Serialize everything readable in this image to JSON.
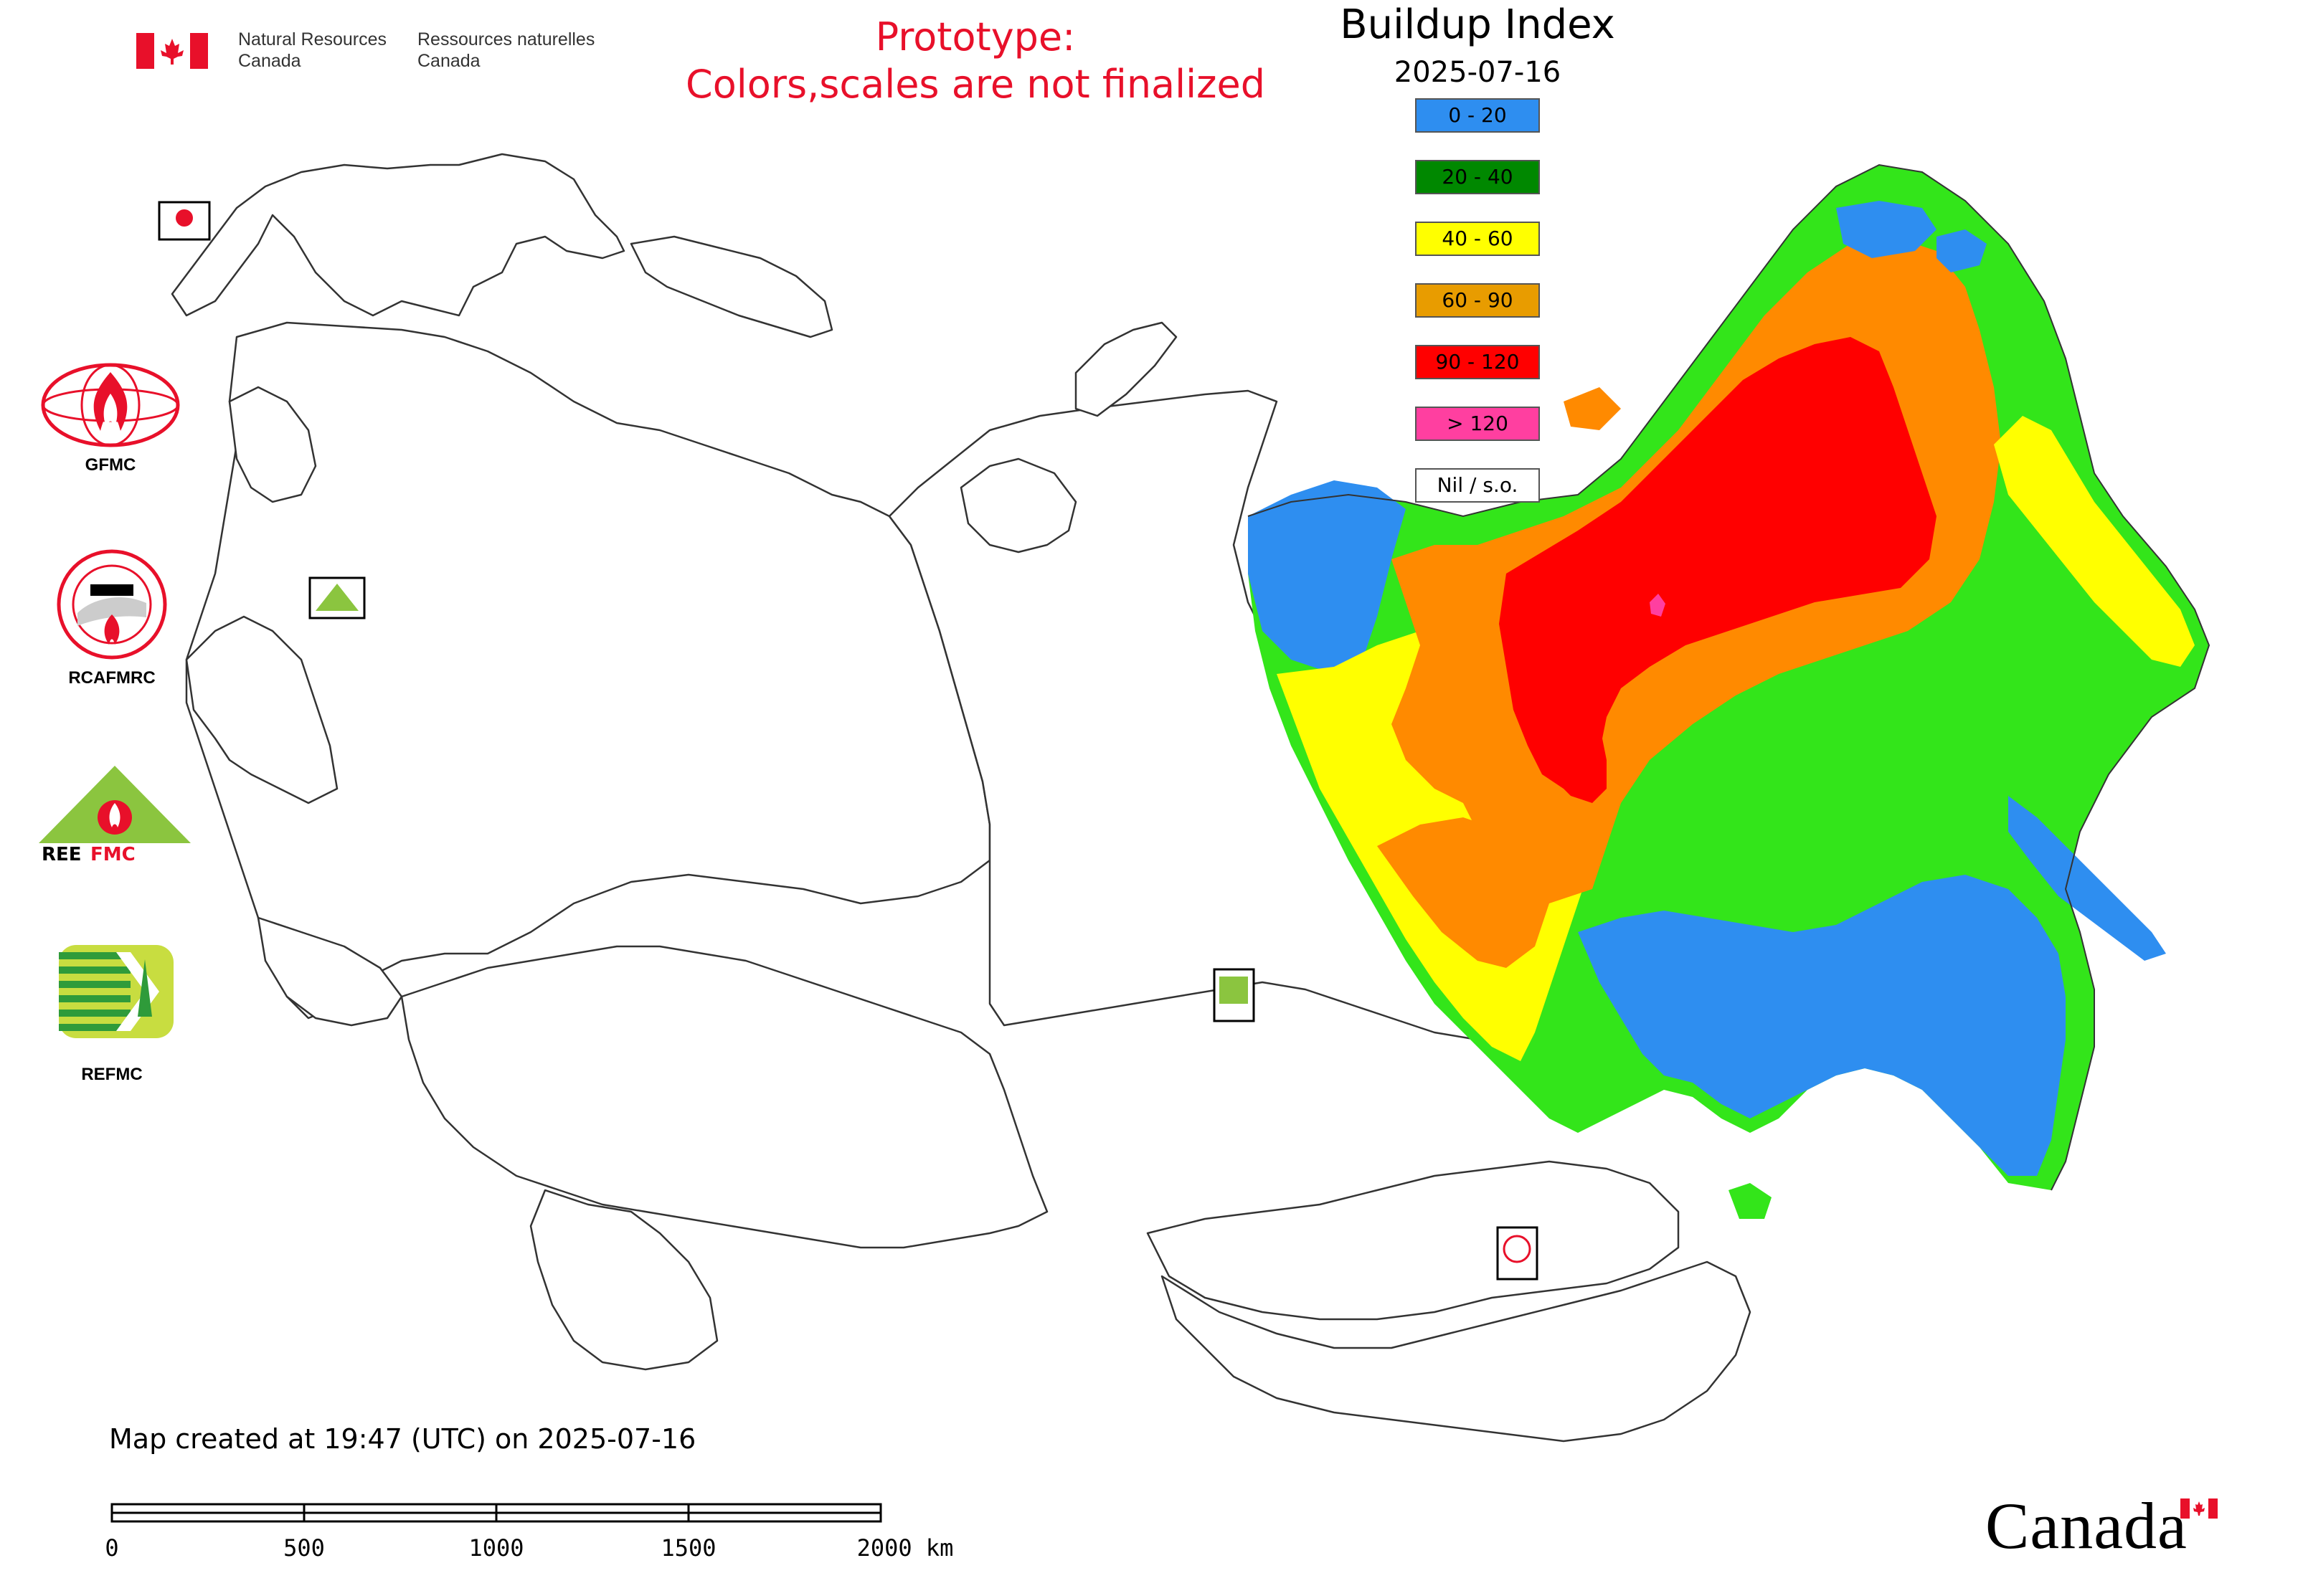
{
  "header": {
    "agency_en": [
      "Natural Resources",
      "Canada"
    ],
    "agency_fr": [
      "Ressources naturelles",
      "Canada"
    ],
    "prototype_lines": [
      "Prototype:",
      "Colors,scales are not finalized"
    ],
    "title": "Buildup Index",
    "date": "2025-07-16"
  },
  "legend": [
    {
      "label": "0 - 20",
      "color": "#2e8ef0"
    },
    {
      "label": "20 - 40",
      "color": "#008800"
    },
    {
      "label": "40 - 60",
      "color": "#ffff00"
    },
    {
      "label": "60 - 90",
      "color": "#e89c00"
    },
    {
      "label": "90 - 120",
      "color": "#ff0000"
    },
    {
      "label": "> 120",
      "color": "#ff3fa0"
    },
    {
      "label": "Nil / s.o.",
      "color": "#ffffff"
    }
  ],
  "palette": {
    "blue": "#2e8ef0",
    "green": "#33e51a",
    "yellow": "#ffff00",
    "orange": "#ff8a00",
    "red": "#ff0000",
    "pink": "#ff3fa0",
    "outline": "#333333"
  },
  "sidebar_logos": [
    {
      "name": "gfmc",
      "label": "GFMC",
      "icon": "gfmc-globe-fire-icon"
    },
    {
      "name": "rcafmrc",
      "label": "RCAFMRC",
      "icon": "rcafmrc-seal-icon"
    },
    {
      "name": "reefmc",
      "label": "REEFMC",
      "icon": "reefmc-triangle-icon"
    },
    {
      "name": "refmc",
      "label": "REFMC",
      "icon": "refmc-sigma-icon"
    }
  ],
  "footer": {
    "created": "Map created at 19:47 (UTC) on 2025-07-16",
    "scale_labels": [
      "0",
      "500",
      "1000",
      "1500",
      "2000 km"
    ],
    "wordmark": "Canada"
  }
}
